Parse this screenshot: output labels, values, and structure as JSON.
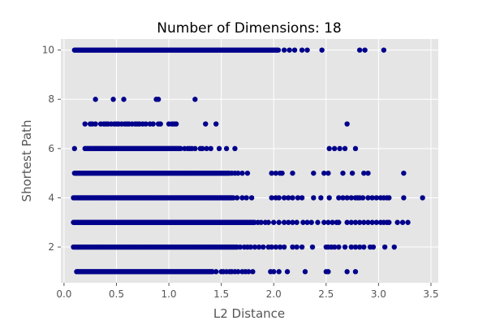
{
  "chart_data": {
    "type": "scatter",
    "title": "Number of Dimensions: 18",
    "xlabel": "L2 Distance",
    "ylabel": "Shortest Path",
    "xlim": [
      -0.03,
      3.57
    ],
    "ylim": [
      0.55,
      10.45
    ],
    "xticks": [
      0.0,
      0.5,
      1.0,
      1.5,
      2.0,
      2.5,
      3.0,
      3.5
    ],
    "xtick_labels": [
      "0.0",
      "0.5",
      "1.0",
      "1.5",
      "2.0",
      "2.5",
      "3.0",
      "3.5"
    ],
    "yticks": [
      2,
      4,
      6,
      8,
      10
    ],
    "ytick_labels": [
      "2",
      "4",
      "6",
      "8",
      "10"
    ],
    "grid": true,
    "style": "ggplot",
    "marker_color": "#00008b",
    "background_color": "#e5e5e5",
    "points_by_level": {
      "1": {
        "dense_min": 0.12,
        "dense_max": 1.42,
        "sparse": [
          1.45,
          1.5,
          1.52,
          1.55,
          1.58,
          1.6,
          1.63,
          1.66,
          1.7,
          1.73,
          1.76,
          1.8,
          1.97,
          2.0,
          2.05,
          2.13,
          2.3,
          2.5,
          2.52,
          2.7,
          2.78
        ]
      },
      "2": {
        "dense_min": 0.09,
        "dense_max": 1.65,
        "sparse": [
          1.68,
          1.72,
          1.75,
          1.78,
          1.82,
          1.86,
          1.9,
          1.95,
          1.98,
          2.02,
          2.06,
          2.1,
          2.18,
          2.22,
          2.27,
          2.37,
          2.5,
          2.52,
          2.55,
          2.58,
          2.62,
          2.68,
          2.74,
          2.78,
          2.82,
          2.86,
          2.92,
          2.95,
          3.06,
          3.15
        ]
      },
      "3": {
        "dense_min": 0.09,
        "dense_max": 1.82,
        "sparse": [
          1.85,
          1.88,
          1.92,
          1.95,
          2.0,
          2.05,
          2.1,
          2.14,
          2.18,
          2.22,
          2.28,
          2.32,
          2.36,
          2.42,
          2.48,
          2.52,
          2.56,
          2.6,
          2.62,
          2.7,
          2.74,
          2.78,
          2.82,
          2.86,
          2.9,
          2.94,
          2.98,
          3.02,
          3.05,
          3.08,
          3.1,
          3.18,
          3.23,
          3.28
        ]
      },
      "4": {
        "dense_min": 0.09,
        "dense_max": 1.62,
        "sparse": [
          1.65,
          1.7,
          1.74,
          1.79,
          1.98,
          2.02,
          2.05,
          2.1,
          2.14,
          2.18,
          2.23,
          2.27,
          2.38,
          2.45,
          2.53,
          2.62,
          2.66,
          2.7,
          2.74,
          2.78,
          2.8,
          2.82,
          2.85,
          2.9,
          2.94,
          2.98,
          3.02,
          3.05,
          3.08,
          3.1,
          3.24,
          3.42
        ]
      },
      "5": {
        "dense_min": 0.1,
        "dense_max": 1.58,
        "sparse": [
          1.6,
          1.63,
          1.66,
          1.7,
          1.75,
          1.98,
          2.02,
          2.06,
          2.08,
          2.18,
          2.38,
          2.48,
          2.52,
          2.66,
          2.75,
          2.86,
          2.9,
          3.24
        ]
      },
      "6": {
        "dense_min": 0.2,
        "dense_max": 1.12,
        "sparse": [
          0.1,
          1.15,
          1.18,
          1.2,
          1.22,
          1.25,
          1.3,
          1.32,
          1.36,
          1.4,
          1.48,
          1.55,
          1.63,
          2.53,
          2.58,
          2.63,
          2.68,
          2.78
        ]
      },
      "7": {
        "sparse": [
          0.2,
          0.25,
          0.27,
          0.3,
          0.35,
          0.38,
          0.4,
          0.42,
          0.45,
          0.48,
          0.5,
          0.52,
          0.55,
          0.58,
          0.6,
          0.62,
          0.65,
          0.68,
          0.7,
          0.72,
          0.75,
          0.78,
          0.82,
          0.85,
          0.9,
          0.92,
          1.0,
          1.03,
          1.05,
          1.07,
          1.35,
          1.45,
          2.7
        ]
      },
      "8": {
        "sparse": [
          0.3,
          0.47,
          0.57,
          0.88,
          0.9,
          1.25
        ]
      },
      "9": {
        "sparse": []
      },
      "10": {
        "dense_min": 0.1,
        "dense_max": 2.05,
        "sparse": [
          2.1,
          2.15,
          2.2,
          2.27,
          2.32,
          2.46,
          2.82,
          2.87,
          3.05
        ]
      }
    }
  }
}
